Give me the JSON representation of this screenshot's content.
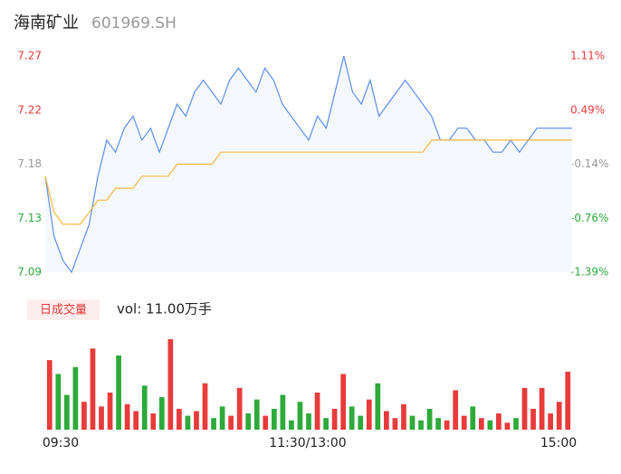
{
  "chart_data": {
    "type": "line",
    "title": "海南矿业",
    "subtitle": "601969.SH",
    "x_labels": [
      "09:30",
      "11:30/13:00",
      "15:00"
    ],
    "ylim": [
      7.09,
      7.27
    ],
    "yticks": [
      7.27,
      {
        "value": 7.225,
        "label": "7.22"
      },
      7.18,
      {
        "value": 7.135,
        "label": "7.13"
      },
      7.09
    ],
    "y2lim": [
      -1.39,
      1.11
    ],
    "y2ticks": [
      {
        "value": 1.11,
        "label": "1.11%"
      },
      {
        "value": 0.485,
        "label": "0.49%"
      },
      {
        "value": -0.14,
        "label": "-0.14%"
      },
      {
        "value": -0.765,
        "label": "-0.76%"
      },
      {
        "value": -1.39,
        "label": "-1.39%"
      }
    ],
    "tick_colors": [
      "#e83b3b",
      "#e83b3b",
      "#999999",
      "#2eaa3a",
      "#2eaa3a"
    ],
    "series": [
      {
        "name": "price",
        "color": "#5b8def",
        "values": [
          7.17,
          7.12,
          7.1,
          7.09,
          7.11,
          7.13,
          7.17,
          7.2,
          7.19,
          7.21,
          7.22,
          7.2,
          7.21,
          7.19,
          7.21,
          7.23,
          7.22,
          7.24,
          7.25,
          7.24,
          7.23,
          7.25,
          7.26,
          7.25,
          7.24,
          7.26,
          7.25,
          7.23,
          7.22,
          7.21,
          7.2,
          7.22,
          7.21,
          7.24,
          7.27,
          7.24,
          7.23,
          7.25,
          7.22,
          7.23,
          7.24,
          7.25,
          7.24,
          7.23,
          7.22,
          7.2,
          7.2,
          7.21,
          7.21,
          7.2,
          7.2,
          7.19,
          7.19,
          7.2,
          7.19,
          7.2,
          7.21,
          7.21,
          7.21,
          7.21,
          7.21
        ]
      },
      {
        "name": "average",
        "color": "#f5b83d",
        "values": [
          7.17,
          7.14,
          7.13,
          7.13,
          7.13,
          7.14,
          7.15,
          7.15,
          7.16,
          7.16,
          7.16,
          7.17,
          7.17,
          7.17,
          7.17,
          7.18,
          7.18,
          7.18,
          7.18,
          7.18,
          7.19,
          7.19,
          7.19,
          7.19,
          7.19,
          7.19,
          7.19,
          7.19,
          7.19,
          7.19,
          7.19,
          7.19,
          7.19,
          7.19,
          7.19,
          7.19,
          7.19,
          7.19,
          7.19,
          7.19,
          7.19,
          7.19,
          7.19,
          7.19,
          7.2,
          7.2,
          7.2,
          7.2,
          7.2,
          7.2,
          7.2,
          7.2,
          7.2,
          7.2,
          7.2,
          7.2,
          7.2,
          7.2,
          7.2,
          7.2,
          7.2
        ]
      }
    ],
    "volume_button": "日成交量",
    "volume_label": "vol: 11.00万手",
    "volume": {
      "up_color": "#e83b3b",
      "down_color": "#2eaa3a",
      "values": [
        3.0,
        2.4,
        1.5,
        2.7,
        1.2,
        3.5,
        1.0,
        1.6,
        3.2,
        1.1,
        0.8,
        1.9,
        0.7,
        1.4,
        3.9,
        0.9,
        0.6,
        0.8,
        2.0,
        0.5,
        1.0,
        0.6,
        1.8,
        0.7,
        1.3,
        0.6,
        0.9,
        1.5,
        0.4,
        1.2,
        0.7,
        1.6,
        0.5,
        0.9,
        2.4,
        1.0,
        0.6,
        1.3,
        2.0,
        0.8,
        0.5,
        1.1,
        0.6,
        0.4,
        0.9,
        0.5,
        0.4,
        1.7,
        0.6,
        1.0,
        0.5,
        0.4,
        0.7,
        0.3,
        0.5,
        1.8,
        0.9,
        1.8,
        0.7,
        1.2,
        2.5
      ]
    }
  }
}
